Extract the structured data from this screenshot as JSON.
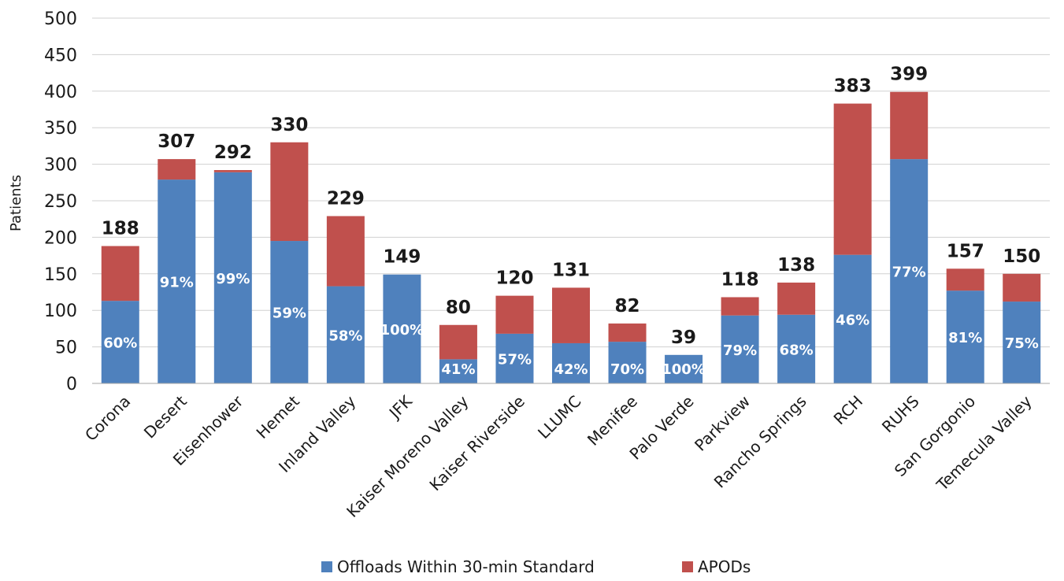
{
  "chart_data": {
    "type": "bar",
    "stacked": true,
    "ylabel": "Patients",
    "xlabel": "",
    "ylim": [
      0,
      500
    ],
    "yticks": [
      0,
      50,
      100,
      150,
      200,
      250,
      300,
      350,
      400,
      450,
      500
    ],
    "grid": true,
    "legend_position": "bottom",
    "categories": [
      "Corona",
      "Desert",
      "Eisenhower",
      "Hemet",
      "Inland Valley",
      "JFK",
      "Kaiser  Moreno Valley",
      "Kaiser Riverside",
      "LLUMC",
      "Menifee",
      "Palo Verde",
      "Parkview",
      "Rancho Springs",
      "RCH",
      "RUHS",
      "San Gorgonio",
      "Temecula Valley"
    ],
    "totals": [
      188,
      307,
      292,
      330,
      229,
      149,
      80,
      120,
      131,
      82,
      39,
      118,
      138,
      383,
      399,
      157,
      150
    ],
    "totals_labels": [
      "188",
      "307",
      "292",
      "330",
      "229",
      "149",
      "80",
      "120",
      "131",
      "82",
      "39",
      "118",
      "138",
      "383",
      "399",
      "157",
      "150"
    ],
    "percent_labels": [
      "60%",
      "91%",
      "99%",
      "59%",
      "58%",
      "100%",
      "41%",
      "57%",
      "42%",
      "70%",
      "100%",
      "79%",
      "68%",
      "46%",
      "77%",
      "81%",
      "75%"
    ],
    "series": [
      {
        "name": "Offloads Within 30-min Standard",
        "color": "#4f81bd",
        "values": [
          113,
          279,
          289,
          195,
          133,
          149,
          33,
          68,
          55,
          57,
          39,
          93,
          94,
          176,
          307,
          127,
          112
        ]
      },
      {
        "name": "APODs",
        "color": "#c0504d",
        "values": [
          75,
          28,
          3,
          135,
          96,
          0,
          47,
          52,
          76,
          25,
          0,
          25,
          44,
          207,
          92,
          30,
          38
        ]
      }
    ]
  }
}
